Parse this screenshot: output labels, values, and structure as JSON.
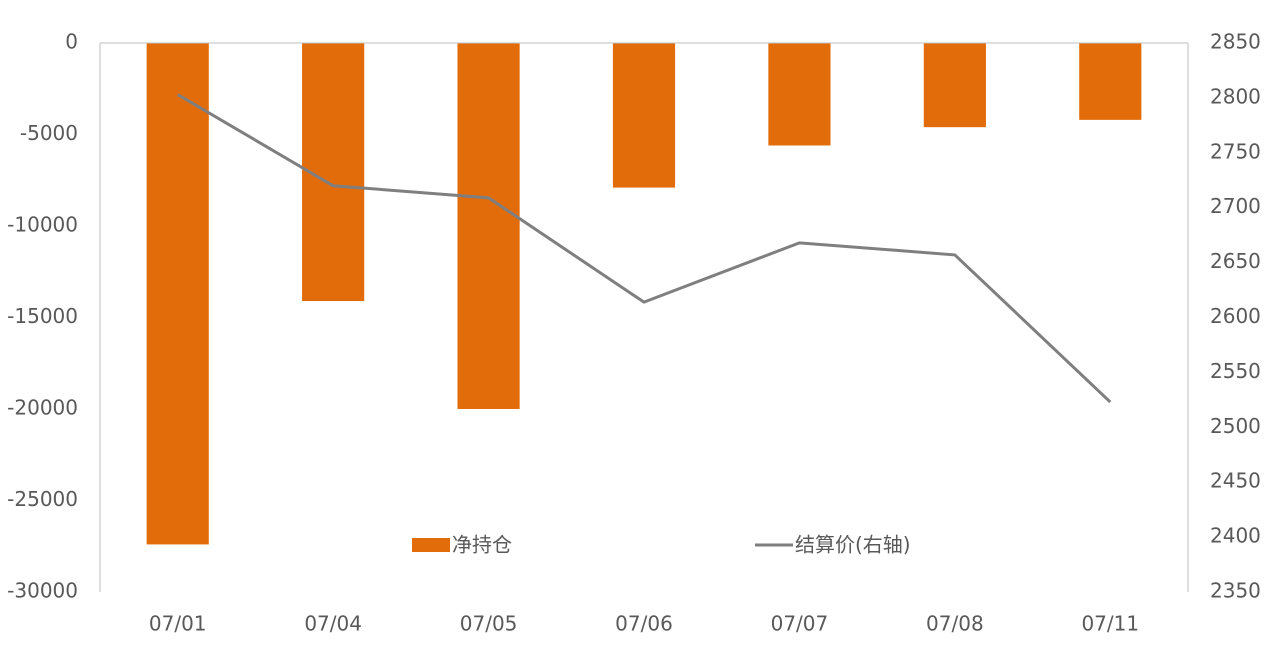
{
  "chart_data": {
    "type": "bar",
    "categories": [
      "07/01",
      "07/04",
      "07/05",
      "07/06",
      "07/07",
      "07/08",
      "07/11"
    ],
    "series": [
      {
        "name": "净持仓",
        "type": "bar",
        "color": "#e36c0a",
        "values": [
          -27400,
          -14100,
          -20000,
          -7900,
          -5600,
          -4600,
          -4200
        ]
      },
      {
        "name": "结算价(右轴)",
        "type": "line",
        "axis": "y2",
        "color": "#7f7f7f",
        "values": [
          2803,
          2720,
          2709,
          2614,
          2668,
          2657,
          2523
        ]
      }
    ],
    "ylim": [
      -30000,
      0
    ],
    "yticks": [
      0,
      -5000,
      -10000,
      -15000,
      -20000,
      -25000,
      -30000
    ],
    "y2lim": [
      2350,
      2850
    ],
    "y2ticks": [
      2850,
      2800,
      2750,
      2700,
      2650,
      2600,
      2550,
      2500,
      2450,
      2400,
      2350
    ],
    "legend": "bottom"
  }
}
